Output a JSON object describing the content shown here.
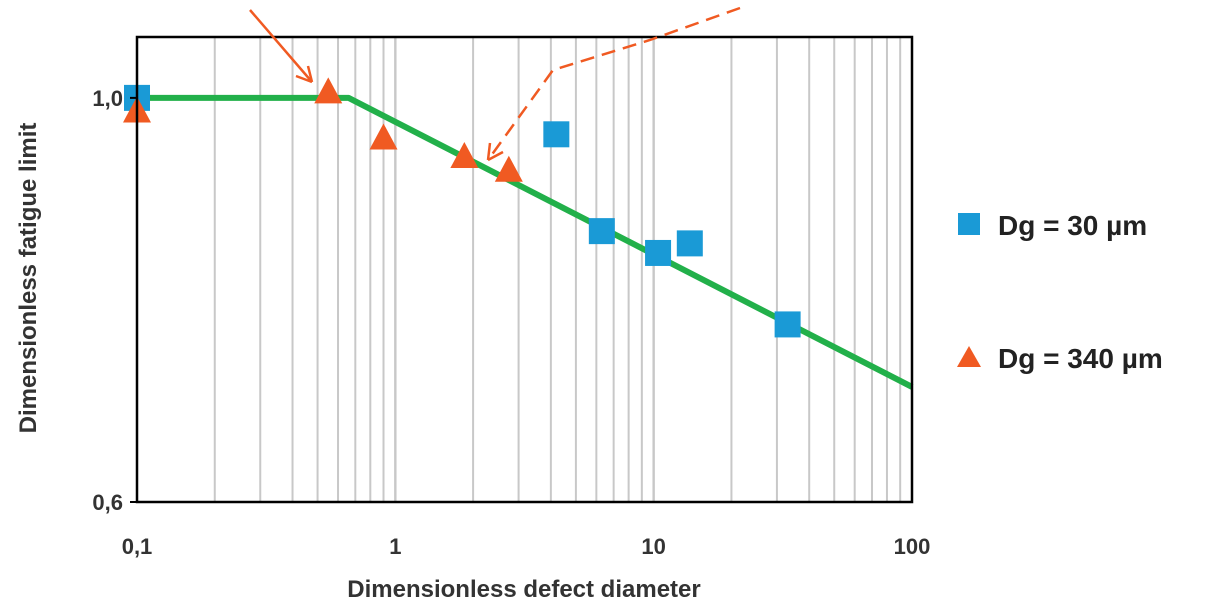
{
  "chart_data": {
    "type": "scatter",
    "title": "",
    "xlabel": "Dimensionless defect diameter",
    "ylabel": "Dimensionless fatigue limit",
    "x_scale": "log",
    "y_scale": "log",
    "xlim": [
      0.1,
      100
    ],
    "ylim": [
      0.6,
      1.08
    ],
    "x_ticks": [
      0.1,
      1,
      10,
      100
    ],
    "x_tick_labels": [
      "0,1",
      "1",
      "10",
      "100"
    ],
    "y_ticks": [
      0.6,
      1.0
    ],
    "y_tick_labels": [
      "0,6",
      "1,0"
    ],
    "grid": "vertical minor and major lines",
    "legend_position": "right",
    "series": [
      {
        "name": "Dg = 30 µm",
        "marker": "square",
        "color": "#1a9ad6",
        "points": [
          {
            "x": 0.1,
            "y": 1.0
          },
          {
            "x": 4.2,
            "y": 0.955
          },
          {
            "x": 6.3,
            "y": 0.845
          },
          {
            "x": 10.4,
            "y": 0.822
          },
          {
            "x": 13.8,
            "y": 0.832
          },
          {
            "x": 33,
            "y": 0.751
          }
        ]
      },
      {
        "name": "Dg = 340 µm",
        "marker": "triangle",
        "color": "#f05a22",
        "points": [
          {
            "x": 0.1,
            "y": 0.983
          },
          {
            "x": 0.55,
            "y": 1.007
          },
          {
            "x": 0.9,
            "y": 0.95
          },
          {
            "x": 1.85,
            "y": 0.928
          },
          {
            "x": 2.75,
            "y": 0.912
          }
        ]
      },
      {
        "name": "",
        "marker": "line",
        "color": "#22b04a",
        "points": [
          {
            "x": 0.1,
            "y": 1.0
          },
          {
            "x": 0.66,
            "y": 1.0
          },
          {
            "x": 100,
            "y": 0.694
          }
        ]
      }
    ]
  },
  "colors": {
    "arrow": "#f05a22",
    "grid": "#c8c8c8",
    "axis": "#000000"
  }
}
